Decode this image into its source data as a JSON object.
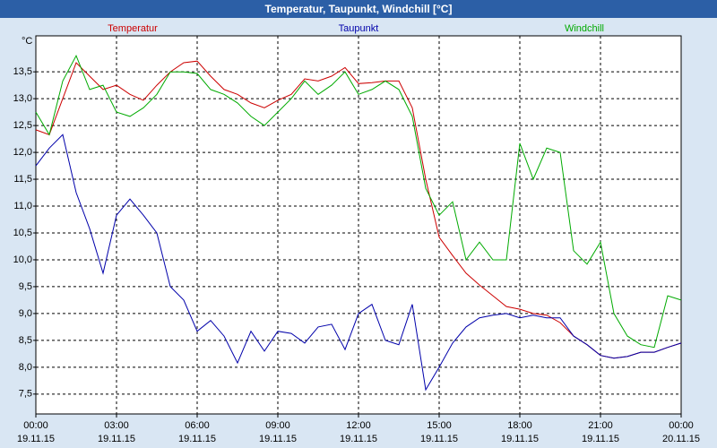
{
  "chart_data": {
    "type": "line",
    "title": "Temperatur, Taupunkt, Windchill [°C]",
    "y_label": "°C",
    "x": [
      0,
      0.5,
      1,
      1.5,
      2,
      2.5,
      3,
      3.5,
      4,
      4.5,
      5,
      5.5,
      6,
      6.5,
      7,
      7.5,
      8,
      8.5,
      9,
      9.5,
      10,
      10.5,
      11,
      11.5,
      12,
      12.5,
      13,
      13.5,
      14,
      14.5,
      15,
      15.5,
      16,
      16.5,
      17,
      17.5,
      18,
      18.5,
      19,
      19.5,
      20,
      20.5,
      21,
      21.5,
      22,
      22.5,
      23,
      23.5,
      24
    ],
    "xlim": [
      0,
      24
    ],
    "xticks": [
      {
        "value": 0,
        "label": "00:00"
      },
      {
        "value": 3,
        "label": "03:00"
      },
      {
        "value": 6,
        "label": "06:00"
      },
      {
        "value": 9,
        "label": "09:00"
      },
      {
        "value": 12,
        "label": "12:00"
      },
      {
        "value": 15,
        "label": "15:00"
      },
      {
        "value": 18,
        "label": "18:00"
      },
      {
        "value": 21,
        "label": "21:00"
      },
      {
        "value": 24,
        "label": "00:00"
      }
    ],
    "xtick_dates": [
      "19.11.15",
      "19.11.15",
      "19.11.15",
      "19.11.15",
      "19.11.15",
      "19.11.15",
      "19.11.15",
      "19.11.15",
      "20.11.15"
    ],
    "ylim": [
      7.13,
      14.17
    ],
    "yticks": [
      {
        "value": 7.5,
        "label": "7,5"
      },
      {
        "value": 8,
        "label": "8,0"
      },
      {
        "value": 8.5,
        "label": "8,5"
      },
      {
        "value": 9,
        "label": "9,0"
      },
      {
        "value": 9.5,
        "label": "9,5"
      },
      {
        "value": 10,
        "label": "10,0"
      },
      {
        "value": 10.5,
        "label": "10,5"
      },
      {
        "value": 11,
        "label": "11,0"
      },
      {
        "value": 11.5,
        "label": "11,5"
      },
      {
        "value": 12,
        "label": "12,0"
      },
      {
        "value": 12.5,
        "label": "12,5"
      },
      {
        "value": 13,
        "label": "13,0"
      },
      {
        "value": 13.5,
        "label": "13,5"
      }
    ],
    "grid": true,
    "series": [
      {
        "name": "Temperatur",
        "color": "#cc0000",
        "values": [
          12.42,
          12.33,
          13.0,
          13.67,
          13.42,
          13.17,
          13.25,
          13.08,
          12.97,
          13.25,
          13.5,
          13.67,
          13.7,
          13.42,
          13.17,
          13.08,
          12.92,
          12.83,
          12.97,
          13.08,
          13.37,
          13.33,
          13.42,
          13.58,
          13.28,
          13.3,
          13.33,
          13.33,
          12.83,
          11.5,
          10.42,
          10.08,
          9.75,
          9.53,
          9.33,
          9.13,
          9.08,
          9.0,
          8.97,
          8.83,
          8.58,
          8.42,
          8.22,
          8.17,
          8.2,
          8.28,
          8.28,
          8.37,
          8.45
        ]
      },
      {
        "name": "Taupunkt",
        "color": "#0000aa",
        "values": [
          11.75,
          12.08,
          12.33,
          11.25,
          10.58,
          9.75,
          10.83,
          11.13,
          10.83,
          10.5,
          9.5,
          9.25,
          8.67,
          8.87,
          8.58,
          8.08,
          8.67,
          8.3,
          8.67,
          8.63,
          8.45,
          8.75,
          8.8,
          8.33,
          9.0,
          9.17,
          8.5,
          8.42,
          9.17,
          7.58,
          8.0,
          8.45,
          8.75,
          8.92,
          8.97,
          9.0,
          8.92,
          8.97,
          8.92,
          8.92,
          8.58,
          8.42,
          8.22,
          8.17,
          8.2,
          8.28,
          8.28,
          8.37,
          8.45
        ]
      },
      {
        "name": "Windchill",
        "color": "#00aa00",
        "values": [
          12.75,
          12.33,
          13.33,
          13.8,
          13.17,
          13.25,
          12.75,
          12.67,
          12.83,
          13.08,
          13.5,
          13.5,
          13.47,
          13.17,
          13.08,
          12.92,
          12.67,
          12.5,
          12.75,
          13.0,
          13.33,
          13.08,
          13.25,
          13.5,
          13.08,
          13.17,
          13.33,
          13.17,
          12.67,
          11.33,
          10.83,
          11.08,
          10.0,
          10.33,
          10.0,
          10.0,
          12.17,
          11.5,
          12.08,
          12.0,
          10.17,
          9.92,
          10.33,
          9.0,
          8.58,
          8.42,
          8.37,
          9.33,
          9.25
        ]
      }
    ]
  }
}
